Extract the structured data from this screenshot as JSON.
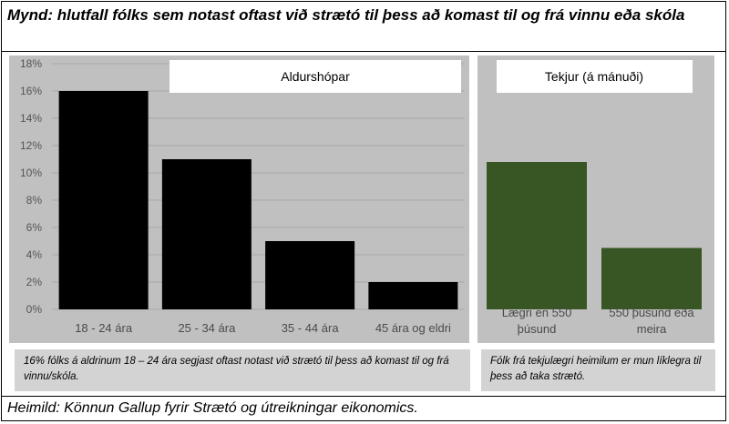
{
  "figure": {
    "title": "Mynd: hlutfall fólks sem notast oftast við strætó til þess að komast til og frá vinnu eða skóla",
    "source": "Heimild: Könnun Gallup fyrir Strætó og útreikningar eikonomics."
  },
  "chart_data": [
    {
      "type": "bar",
      "title": "Aldurshópar",
      "categories": [
        "18 - 24 ára",
        "25 - 34 ára",
        "35 - 44 ára",
        "45 ára og eldri"
      ],
      "series": [
        {
          "values": [
            16,
            11,
            5,
            2
          ]
        }
      ],
      "y_unit": "%",
      "ylim": [
        0,
        18
      ],
      "y_ticks": [
        "0%",
        "2%",
        "4%",
        "6%",
        "8%",
        "10%",
        "12%",
        "14%",
        "16%",
        "18%"
      ],
      "bar_color": "#000000",
      "grid": true,
      "note": "16% fólks á aldrinum 18 – 24 ára segjast oftast notast við strætó til þess að komast til og frá vinnu/skóla."
    },
    {
      "type": "bar",
      "title": "Tekjur (á mánuði)",
      "categories": [
        "Lægri en 550 þúsund",
        "550 þúsund eða meira"
      ],
      "category_lines": [
        [
          "Lægri en 550",
          "þúsund"
        ],
        [
          "550 þúsund eða",
          "meira"
        ]
      ],
      "series": [
        {
          "values": [
            10.8,
            4.5
          ]
        }
      ],
      "y_unit": "%",
      "ylim": [
        0,
        18
      ],
      "bar_color": "#375623",
      "grid": false,
      "note": "Fólk frá tekjulægri heimilum er mun líklegra til þess að taka strætó."
    }
  ],
  "colors": {
    "panel_background": "#c0c0c0",
    "note_background": "#d3d3d3",
    "grid": "#a8a8a8"
  }
}
